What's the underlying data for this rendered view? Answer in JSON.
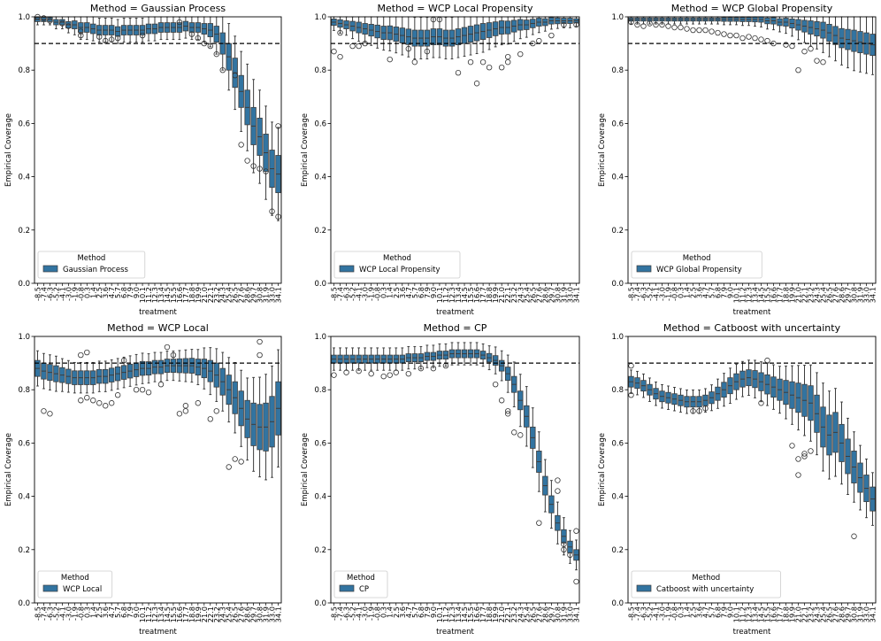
{
  "figure": {
    "hline": 0.9,
    "box_color": "#3274a1",
    "edge_color": "#3d3d3d",
    "tick_labels": [
      "-8.5",
      "-7.4",
      "-6.3",
      "-5.2",
      "-4.1",
      "-3.0",
      "-1.9",
      "-0.8",
      "0.3",
      "1.4",
      "2.5",
      "3.6",
      "4.7",
      "5.7",
      "6.8",
      "7.9",
      "9.0",
      "10.1",
      "11.2",
      "12.3",
      "13.4",
      "14.5",
      "15.5",
      "16.6",
      "17.7",
      "18.8",
      "19.9",
      "21.0",
      "22.1",
      "23.2",
      "24.3",
      "25.4",
      "26.5",
      "27.6",
      "28.6",
      "29.7",
      "30.8",
      "31.9",
      "33.0",
      "34.1"
    ]
  },
  "chart_data": [
    {
      "type": "box",
      "title": "Method = Gaussian Process",
      "xlabel": "treatment",
      "ylabel": "Empirical Coverage",
      "ylim": [
        0,
        1
      ],
      "yticks": [
        "0.0",
        "0.2",
        "0.4",
        "0.6",
        "0.8",
        "1.0"
      ],
      "legend": {
        "title": "Method",
        "label": "Gaussian Process",
        "position": "lower-left"
      },
      "median": [
        0.99,
        0.99,
        0.99,
        0.98,
        0.98,
        0.97,
        0.97,
        0.96,
        0.96,
        0.955,
        0.95,
        0.95,
        0.95,
        0.945,
        0.95,
        0.95,
        0.95,
        0.95,
        0.955,
        0.955,
        0.96,
        0.96,
        0.96,
        0.96,
        0.965,
        0.96,
        0.96,
        0.955,
        0.95,
        0.935,
        0.9,
        0.85,
        0.79,
        0.72,
        0.66,
        0.59,
        0.55,
        0.49,
        0.43,
        0.41
      ],
      "spread": [
        0.008,
        0.008,
        0.008,
        0.01,
        0.01,
        0.012,
        0.015,
        0.018,
        0.018,
        0.018,
        0.018,
        0.018,
        0.018,
        0.018,
        0.018,
        0.018,
        0.018,
        0.018,
        0.018,
        0.018,
        0.018,
        0.018,
        0.018,
        0.018,
        0.018,
        0.018,
        0.018,
        0.02,
        0.025,
        0.03,
        0.04,
        0.05,
        0.055,
        0.06,
        0.065,
        0.07,
        0.07,
        0.07,
        0.07,
        0.07
      ],
      "whisker_scale": 2.5,
      "outliers": [
        [
          0,
          1.0
        ],
        [
          1,
          0.995
        ],
        [
          2,
          0.985
        ],
        [
          4,
          0.975
        ],
        [
          5,
          0.965
        ],
        [
          7,
          0.93
        ],
        [
          7,
          0.945
        ],
        [
          10,
          0.925
        ],
        [
          11,
          0.91
        ],
        [
          12,
          0.915
        ],
        [
          13,
          0.92
        ],
        [
          17,
          0.93
        ],
        [
          23,
          0.98
        ],
        [
          25,
          0.935
        ],
        [
          26,
          0.92
        ],
        [
          27,
          0.9
        ],
        [
          28,
          0.89
        ],
        [
          29,
          0.86
        ],
        [
          30,
          0.8
        ],
        [
          32,
          0.78
        ],
        [
          33,
          0.52
        ],
        [
          34,
          0.46
        ],
        [
          35,
          0.44
        ],
        [
          36,
          0.43
        ],
        [
          37,
          0.42
        ],
        [
          38,
          0.27
        ],
        [
          39,
          0.59
        ],
        [
          39,
          0.25
        ]
      ]
    },
    {
      "type": "box",
      "title": "Method = WCP Local Propensity",
      "xlabel": "treatment",
      "ylabel": "Empirical Coverage",
      "ylim": [
        0,
        1
      ],
      "yticks": [
        "0.0",
        "0.2",
        "0.4",
        "0.6",
        "0.8",
        "1.0"
      ],
      "legend": {
        "title": "Method",
        "label": "WCP Local Propensity",
        "position": "lower-left"
      },
      "median": [
        0.98,
        0.975,
        0.97,
        0.965,
        0.96,
        0.955,
        0.95,
        0.945,
        0.94,
        0.94,
        0.935,
        0.93,
        0.925,
        0.92,
        0.92,
        0.92,
        0.925,
        0.925,
        0.92,
        0.92,
        0.925,
        0.93,
        0.935,
        0.94,
        0.945,
        0.95,
        0.955,
        0.96,
        0.96,
        0.965,
        0.97,
        0.97,
        0.975,
        0.98,
        0.98,
        0.985,
        0.985,
        0.985,
        0.985,
        0.985
      ],
      "spread": [
        0.012,
        0.014,
        0.015,
        0.018,
        0.02,
        0.02,
        0.022,
        0.024,
        0.025,
        0.026,
        0.027,
        0.028,
        0.029,
        0.03,
        0.03,
        0.03,
        0.03,
        0.03,
        0.03,
        0.03,
        0.03,
        0.03,
        0.03,
        0.03,
        0.03,
        0.028,
        0.026,
        0.025,
        0.024,
        0.022,
        0.02,
        0.018,
        0.016,
        0.015,
        0.013,
        0.012,
        0.011,
        0.01,
        0.01,
        0.008
      ],
      "whisker_scale": 2.6,
      "outliers": [
        [
          0,
          0.87
        ],
        [
          1,
          0.85
        ],
        [
          1,
          0.94
        ],
        [
          3,
          0.89
        ],
        [
          4,
          0.89
        ],
        [
          5,
          0.9
        ],
        [
          9,
          0.84
        ],
        [
          12,
          0.88
        ],
        [
          13,
          0.83
        ],
        [
          15,
          0.87
        ],
        [
          16,
          0.99
        ],
        [
          17,
          0.99
        ],
        [
          20,
          0.79
        ],
        [
          22,
          0.83
        ],
        [
          23,
          0.75
        ],
        [
          24,
          0.83
        ],
        [
          25,
          0.81
        ],
        [
          27,
          0.81
        ],
        [
          28,
          0.83
        ],
        [
          28,
          0.85
        ],
        [
          30,
          0.86
        ],
        [
          32,
          0.9
        ],
        [
          33,
          0.91
        ],
        [
          35,
          0.93
        ],
        [
          37,
          0.97
        ],
        [
          39,
          0.97
        ]
      ]
    },
    {
      "type": "box",
      "title": "Method = WCP Global Propensity",
      "xlabel": "treatment",
      "ylabel": "Empirical Coverage",
      "ylim": [
        0,
        1
      ],
      "yticks": [
        "0.0",
        "0.2",
        "0.4",
        "0.6",
        "0.8",
        "1.0"
      ],
      "legend": {
        "title": "Method",
        "label": "WCP Global Propensity",
        "position": "lower-left"
      },
      "median": [
        0.99,
        0.99,
        0.99,
        0.99,
        0.99,
        0.99,
        0.99,
        0.99,
        0.99,
        0.99,
        0.99,
        0.99,
        0.99,
        0.99,
        0.99,
        0.99,
        0.99,
        0.99,
        0.99,
        0.99,
        0.99,
        0.99,
        0.985,
        0.985,
        0.98,
        0.98,
        0.975,
        0.97,
        0.965,
        0.96,
        0.955,
        0.95,
        0.94,
        0.93,
        0.92,
        0.915,
        0.91,
        0.905,
        0.9,
        0.895
      ],
      "spread": [
        0.006,
        0.006,
        0.006,
        0.006,
        0.006,
        0.006,
        0.006,
        0.006,
        0.006,
        0.006,
        0.006,
        0.006,
        0.006,
        0.006,
        0.006,
        0.007,
        0.007,
        0.007,
        0.008,
        0.008,
        0.009,
        0.01,
        0.011,
        0.012,
        0.013,
        0.015,
        0.017,
        0.02,
        0.022,
        0.025,
        0.027,
        0.03,
        0.032,
        0.034,
        0.036,
        0.038,
        0.04,
        0.04,
        0.04,
        0.04
      ],
      "whisker_scale": 2.8,
      "outliers": [
        [
          0,
          0.98
        ],
        [
          1,
          0.97
        ],
        [
          2,
          0.965
        ],
        [
          3,
          0.975
        ],
        [
          4,
          0.97
        ],
        [
          5,
          0.97
        ],
        [
          6,
          0.965
        ],
        [
          7,
          0.96
        ],
        [
          8,
          0.96
        ],
        [
          9,
          0.955
        ],
        [
          10,
          0.95
        ],
        [
          11,
          0.95
        ],
        [
          12,
          0.95
        ],
        [
          13,
          0.945
        ],
        [
          14,
          0.94
        ],
        [
          15,
          0.935
        ],
        [
          16,
          0.93
        ],
        [
          17,
          0.93
        ],
        [
          18,
          0.92
        ],
        [
          19,
          0.925
        ],
        [
          20,
          0.92
        ],
        [
          21,
          0.915
        ],
        [
          22,
          0.91
        ],
        [
          23,
          0.9
        ],
        [
          25,
          0.895
        ],
        [
          26,
          0.89
        ],
        [
          27,
          0.8
        ],
        [
          28,
          0.87
        ],
        [
          29,
          0.88
        ],
        [
          30,
          0.835
        ],
        [
          31,
          0.83
        ]
      ]
    },
    {
      "type": "box",
      "title": "Method = WCP Local",
      "xlabel": "treatment",
      "ylabel": "Empirical Coverage",
      "ylim": [
        0,
        1
      ],
      "yticks": [
        "0.0",
        "0.2",
        "0.4",
        "0.6",
        "0.8",
        "1.0"
      ],
      "legend": {
        "title": "Method",
        "label": "WCP Local",
        "position": "lower-left"
      },
      "median": [
        0.88,
        0.87,
        0.865,
        0.86,
        0.855,
        0.85,
        0.845,
        0.845,
        0.845,
        0.845,
        0.85,
        0.85,
        0.855,
        0.86,
        0.865,
        0.87,
        0.875,
        0.88,
        0.88,
        0.885,
        0.885,
        0.89,
        0.89,
        0.89,
        0.89,
        0.89,
        0.885,
        0.88,
        0.87,
        0.855,
        0.83,
        0.8,
        0.77,
        0.73,
        0.69,
        0.67,
        0.66,
        0.66,
        0.68,
        0.73
      ],
      "spread": [
        0.03,
        0.03,
        0.03,
        0.03,
        0.028,
        0.027,
        0.026,
        0.026,
        0.026,
        0.026,
        0.026,
        0.026,
        0.026,
        0.026,
        0.026,
        0.026,
        0.026,
        0.026,
        0.025,
        0.025,
        0.025,
        0.025,
        0.025,
        0.026,
        0.027,
        0.028,
        0.03,
        0.035,
        0.04,
        0.045,
        0.05,
        0.055,
        0.06,
        0.065,
        0.07,
        0.08,
        0.085,
        0.09,
        0.095,
        0.1
      ],
      "whisker_scale": 2.2,
      "outliers": [
        [
          1,
          0.72
        ],
        [
          2,
          0.71
        ],
        [
          7,
          0.76
        ],
        [
          8,
          0.77
        ],
        [
          7,
          0.93
        ],
        [
          8,
          0.94
        ],
        [
          9,
          0.76
        ],
        [
          10,
          0.75
        ],
        [
          11,
          0.74
        ],
        [
          12,
          0.75
        ],
        [
          13,
          0.78
        ],
        [
          14,
          0.91
        ],
        [
          16,
          0.8
        ],
        [
          17,
          0.8
        ],
        [
          18,
          0.79
        ],
        [
          20,
          0.82
        ],
        [
          21,
          0.96
        ],
        [
          22,
          0.93
        ],
        [
          23,
          0.71
        ],
        [
          24,
          0.74
        ],
        [
          24,
          0.72
        ],
        [
          26,
          0.75
        ],
        [
          28,
          0.69
        ],
        [
          29,
          0.72
        ],
        [
          31,
          0.51
        ],
        [
          32,
          0.54
        ],
        [
          33,
          0.53
        ],
        [
          36,
          0.98
        ],
        [
          36,
          0.93
        ]
      ]
    },
    {
      "type": "box",
      "title": "Method = CP",
      "xlabel": "treatment",
      "ylabel": "Empirical Coverage",
      "ylim": [
        0,
        1
      ],
      "yticks": [
        "0.0",
        "0.2",
        "0.4",
        "0.6",
        "0.8",
        "1.0"
      ],
      "legend": {
        "title": "Method",
        "label": "CP",
        "position": "lower-left"
      },
      "median": [
        0.915,
        0.915,
        0.915,
        0.915,
        0.915,
        0.915,
        0.915,
        0.915,
        0.915,
        0.915,
        0.915,
        0.915,
        0.92,
        0.92,
        0.92,
        0.925,
        0.925,
        0.93,
        0.93,
        0.935,
        0.935,
        0.935,
        0.935,
        0.935,
        0.93,
        0.92,
        0.91,
        0.89,
        0.86,
        0.82,
        0.76,
        0.7,
        0.62,
        0.53,
        0.44,
        0.37,
        0.3,
        0.25,
        0.21,
        0.18
      ],
      "spread": [
        0.015,
        0.015,
        0.015,
        0.015,
        0.015,
        0.015,
        0.015,
        0.015,
        0.015,
        0.015,
        0.015,
        0.015,
        0.015,
        0.015,
        0.015,
        0.015,
        0.015,
        0.015,
        0.015,
        0.015,
        0.015,
        0.015,
        0.015,
        0.015,
        0.015,
        0.016,
        0.018,
        0.02,
        0.025,
        0.03,
        0.035,
        0.04,
        0.04,
        0.04,
        0.035,
        0.032,
        0.028,
        0.025,
        0.022,
        0.02
      ],
      "whisker_scale": 2.8,
      "outliers": [
        [
          0,
          0.855
        ],
        [
          2,
          0.865
        ],
        [
          4,
          0.87
        ],
        [
          6,
          0.86
        ],
        [
          8,
          0.85
        ],
        [
          9,
          0.855
        ],
        [
          10,
          0.865
        ],
        [
          12,
          0.86
        ],
        [
          14,
          0.88
        ],
        [
          16,
          0.88
        ],
        [
          18,
          0.89
        ],
        [
          26,
          0.82
        ],
        [
          27,
          0.76
        ],
        [
          28,
          0.72
        ],
        [
          28,
          0.71
        ],
        [
          29,
          0.64
        ],
        [
          30,
          0.63
        ],
        [
          33,
          0.3
        ],
        [
          36,
          0.46
        ],
        [
          36,
          0.42
        ],
        [
          37,
          0.22
        ],
        [
          37,
          0.2
        ],
        [
          38,
          0.18
        ],
        [
          39,
          0.27
        ],
        [
          39,
          0.08
        ]
      ]
    },
    {
      "type": "box",
      "title": "Method = Catboost with uncertainty",
      "xlabel": "treatment",
      "ylabel": "Empirical Coverage",
      "ylim": [
        0,
        1
      ],
      "yticks": [
        "0.0",
        "0.2",
        "0.4",
        "0.6",
        "0.8",
        "1.0"
      ],
      "legend": {
        "title": "Method",
        "label": "Catboost with uncertainty",
        "position": "lower-left"
      },
      "median": [
        0.83,
        0.825,
        0.815,
        0.8,
        0.785,
        0.775,
        0.77,
        0.765,
        0.76,
        0.755,
        0.755,
        0.755,
        0.76,
        0.77,
        0.785,
        0.8,
        0.815,
        0.83,
        0.84,
        0.845,
        0.84,
        0.83,
        0.82,
        0.81,
        0.8,
        0.79,
        0.78,
        0.77,
        0.76,
        0.75,
        0.71,
        0.66,
        0.63,
        0.64,
        0.6,
        0.55,
        0.51,
        0.47,
        0.43,
        0.39
      ],
      "spread": [
        0.02,
        0.02,
        0.02,
        0.02,
        0.02,
        0.02,
        0.02,
        0.02,
        0.02,
        0.02,
        0.02,
        0.02,
        0.02,
        0.022,
        0.025,
        0.028,
        0.03,
        0.03,
        0.03,
        0.03,
        0.032,
        0.034,
        0.036,
        0.038,
        0.04,
        0.045,
        0.05,
        0.055,
        0.06,
        0.065,
        0.07,
        0.075,
        0.075,
        0.075,
        0.07,
        0.065,
        0.06,
        0.055,
        0.05,
        0.045
      ],
      "whisker_scale": 2.2,
      "outliers": [
        [
          0,
          0.89
        ],
        [
          0,
          0.78
        ],
        [
          10,
          0.72
        ],
        [
          11,
          0.72
        ],
        [
          12,
          0.73
        ],
        [
          21,
          0.75
        ],
        [
          22,
          0.91
        ],
        [
          26,
          0.59
        ],
        [
          27,
          0.48
        ],
        [
          27,
          0.54
        ],
        [
          28,
          0.56
        ],
        [
          28,
          0.55
        ],
        [
          29,
          0.57
        ],
        [
          36,
          0.25
        ]
      ]
    }
  ]
}
